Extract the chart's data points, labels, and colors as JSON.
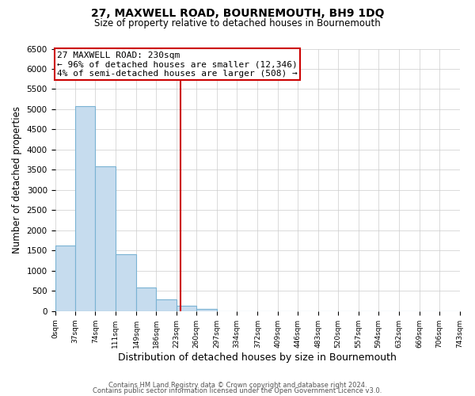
{
  "title": "27, MAXWELL ROAD, BOURNEMOUTH, BH9 1DQ",
  "subtitle": "Size of property relative to detached houses in Bournemouth",
  "xlabel": "Distribution of detached houses by size in Bournemouth",
  "ylabel": "Number of detached properties",
  "bar_edges": [
    0,
    37,
    74,
    111,
    149,
    186,
    223,
    260,
    297,
    334,
    372,
    409,
    446,
    483,
    520,
    557,
    594,
    632,
    669,
    706,
    743
  ],
  "bar_heights": [
    1620,
    5080,
    3580,
    1400,
    590,
    290,
    140,
    60,
    0,
    0,
    0,
    0,
    0,
    0,
    0,
    0,
    0,
    0,
    0,
    0
  ],
  "property_line_x": 230,
  "property_label": "27 MAXWELL ROAD: 230sqm",
  "annotation_line1": "← 96% of detached houses are smaller (12,346)",
  "annotation_line2": "4% of semi-detached houses are larger (508) →",
  "bar_color": "#c6dcee",
  "bar_edge_color": "#7ab3d3",
  "vline_color": "#cc0000",
  "box_edge_color": "#cc0000",
  "ylim": [
    0,
    6500
  ],
  "yticks": [
    0,
    500,
    1000,
    1500,
    2000,
    2500,
    3000,
    3500,
    4000,
    4500,
    5000,
    5500,
    6000,
    6500
  ],
  "tick_labels": [
    "0sqm",
    "37sqm",
    "74sqm",
    "111sqm",
    "149sqm",
    "186sqm",
    "223sqm",
    "260sqm",
    "297sqm",
    "334sqm",
    "372sqm",
    "409sqm",
    "446sqm",
    "483sqm",
    "520sqm",
    "557sqm",
    "594sqm",
    "632sqm",
    "669sqm",
    "706sqm",
    "743sqm"
  ],
  "footer1": "Contains HM Land Registry data © Crown copyright and database right 2024.",
  "footer2": "Contains public sector information licensed under the Open Government Licence v3.0.",
  "background_color": "#ffffff",
  "grid_color": "#cccccc"
}
